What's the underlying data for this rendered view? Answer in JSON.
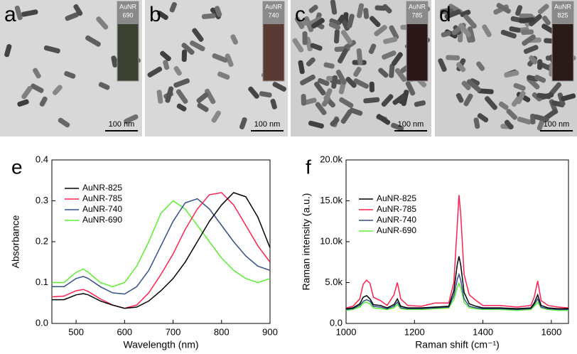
{
  "panels": [
    {
      "label": "a",
      "vial_label": "AuNR",
      "vial_value": "690",
      "scale": "100 nm"
    },
    {
      "label": "b",
      "vial_label": "AuNR",
      "vial_value": "740",
      "scale": "100 nm"
    },
    {
      "label": "c",
      "vial_label": "AuNR",
      "vial_value": "785",
      "scale": "100 nm"
    },
    {
      "label": "d",
      "vial_label": "AuNR",
      "vial_value": "825",
      "scale": "100 nm"
    }
  ],
  "chart_data": [
    {
      "type": "line",
      "panel_label": "e",
      "x_label": "Wavelength (nm)",
      "y_label": "Absorbance",
      "xlim": [
        450,
        900
      ],
      "xticks": [
        500,
        600,
        700,
        800,
        900
      ],
      "ylim": [
        0,
        0.4
      ],
      "yticks": [
        {
          "value": 0,
          "label": "0.0"
        },
        0.1,
        0.2,
        0.3,
        0.4
      ],
      "legend": "upper-left",
      "x": [
        450,
        475,
        500,
        515,
        525,
        550,
        575,
        600,
        625,
        650,
        675,
        700,
        725,
        750,
        775,
        800,
        825,
        850,
        875,
        900
      ],
      "series": [
        {
          "name": "AuNR-825",
          "color": "#000000",
          "values": [
            0.058,
            0.058,
            0.07,
            0.073,
            0.07,
            0.055,
            0.045,
            0.037,
            0.04,
            0.055,
            0.08,
            0.11,
            0.15,
            0.2,
            0.25,
            0.29,
            0.32,
            0.31,
            0.26,
            0.185
          ]
        },
        {
          "name": "AuNR-785",
          "color": "#ff2050",
          "values": [
            0.065,
            0.067,
            0.08,
            0.083,
            0.078,
            0.06,
            0.045,
            0.037,
            0.045,
            0.075,
            0.12,
            0.17,
            0.23,
            0.28,
            0.315,
            0.32,
            0.29,
            0.24,
            0.19,
            0.15
          ]
        },
        {
          "name": "AuNR-740",
          "color": "#34508a",
          "values": [
            0.09,
            0.09,
            0.11,
            0.115,
            0.11,
            0.09,
            0.075,
            0.072,
            0.09,
            0.13,
            0.19,
            0.25,
            0.295,
            0.305,
            0.28,
            0.24,
            0.2,
            0.165,
            0.14,
            0.13
          ]
        },
        {
          "name": "AuNR-690",
          "color": "#5cf032",
          "values": [
            0.1,
            0.1,
            0.125,
            0.133,
            0.125,
            0.1,
            0.09,
            0.1,
            0.14,
            0.2,
            0.27,
            0.3,
            0.28,
            0.24,
            0.2,
            0.16,
            0.13,
            0.11,
            0.1,
            0.11
          ]
        }
      ]
    },
    {
      "type": "line",
      "panel_label": "f",
      "x_label": "Raman shift (cm⁻¹)",
      "y_label": "Raman intensity (a.u.)",
      "xlim": [
        1000,
        1650
      ],
      "xticks": [
        1000,
        1200,
        1400,
        1600
      ],
      "ylim": [
        0,
        20000
      ],
      "yticks": [
        {
          "value": 0,
          "label": "0.0"
        },
        {
          "value": 5000,
          "label": "5.0k"
        },
        {
          "value": 10000,
          "label": "10.0k"
        },
        {
          "value": 15000,
          "label": "15.0k"
        },
        {
          "value": 20000,
          "label": "20.0k"
        }
      ],
      "legend": "upper-left",
      "x": [
        1000,
        1020,
        1040,
        1050,
        1060,
        1070,
        1080,
        1100,
        1120,
        1140,
        1150,
        1160,
        1180,
        1220,
        1260,
        1300,
        1315,
        1325,
        1330,
        1335,
        1345,
        1360,
        1380,
        1400,
        1450,
        1500,
        1540,
        1550,
        1560,
        1570,
        1590,
        1620,
        1650
      ],
      "series": [
        {
          "name": "AuNR-825",
          "color": "#000000",
          "values": [
            1800,
            1900,
            2400,
            3200,
            3400,
            3000,
            2300,
            2200,
            1900,
            2300,
            3000,
            2100,
            1900,
            1900,
            2000,
            2100,
            4000,
            7200,
            8200,
            7200,
            3800,
            2400,
            2100,
            1900,
            1900,
            1800,
            1900,
            2500,
            3500,
            2200,
            1900,
            1800,
            1800
          ]
        },
        {
          "name": "AuNR-785",
          "color": "#ff2050",
          "values": [
            1900,
            2100,
            3000,
            4800,
            5300,
            4900,
            3200,
            2800,
            2200,
            3500,
            5000,
            3000,
            2200,
            2100,
            2500,
            2500,
            5000,
            12000,
            15700,
            13500,
            6000,
            3500,
            2800,
            2200,
            2200,
            2000,
            2200,
            3200,
            5200,
            2800,
            2200,
            2000,
            1900
          ]
        },
        {
          "name": "AuNR-740",
          "color": "#34508a",
          "values": [
            1700,
            1800,
            2200,
            2700,
            2900,
            2700,
            2100,
            2000,
            1800,
            2100,
            2600,
            1900,
            1800,
            1800,
            1900,
            2000,
            3400,
            5400,
            6000,
            5300,
            3000,
            2100,
            1900,
            1800,
            1800,
            1700,
            1800,
            2300,
            3000,
            2000,
            1800,
            1700,
            1700
          ]
        },
        {
          "name": "AuNR-690",
          "color": "#5cf032",
          "values": [
            1600,
            1700,
            2000,
            2500,
            2600,
            2400,
            1900,
            1800,
            1700,
            1900,
            2300,
            1800,
            1700,
            1700,
            1800,
            1900,
            2900,
            4400,
            4900,
            4400,
            2600,
            1900,
            1800,
            1700,
            1700,
            1600,
            1700,
            2100,
            2600,
            1900,
            1700,
            1600,
            1600
          ]
        }
      ]
    }
  ]
}
